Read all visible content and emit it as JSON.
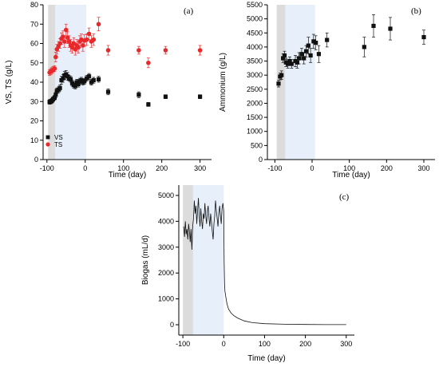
{
  "chart_data": [
    {
      "type": "scatter",
      "panel_label": "(a)",
      "xlabel": "Time (day)",
      "ylabel": "VS, TS (g/L)",
      "xlim": [
        -110,
        330
      ],
      "ylim": [
        0,
        80
      ],
      "xticks": [
        -100,
        0,
        100,
        200,
        300
      ],
      "yticks": [
        0,
        10,
        20,
        30,
        40,
        50,
        60,
        70,
        80
      ],
      "grid": false,
      "legend": "lower-left",
      "shaded_regions": [
        {
          "x0": -97,
          "x1": -78,
          "color": "#dcdcdc"
        },
        {
          "x0": -78,
          "x1": 3,
          "color": "#e7f0fa"
        }
      ],
      "series": [
        {
          "name": "VS",
          "marker": "square",
          "color": "#111111",
          "x": [
            -93,
            -90,
            -87,
            -84,
            -80,
            -77,
            -74,
            -70,
            -66,
            -62,
            -58,
            -54,
            -50,
            -46,
            -42,
            -38,
            -34,
            -30,
            -26,
            -22,
            -18,
            -14,
            -10,
            -6,
            -2,
            4,
            10,
            16,
            22,
            35,
            60,
            140,
            165,
            210,
            300
          ],
          "y": [
            29.8,
            30.0,
            30.4,
            31.2,
            32.0,
            33.5,
            35.5,
            36.0,
            37.0,
            41.0,
            42.0,
            43.5,
            44.0,
            43.0,
            42.0,
            41.5,
            39.5,
            38.5,
            38.0,
            40.0,
            39.0,
            40.5,
            41.0,
            40.0,
            40.5,
            42.0,
            43.0,
            40.0,
            41.0,
            41.5,
            35.0,
            33.5,
            28.5,
            32.5,
            32.5
          ],
          "err": [
            1.2,
            1.2,
            1.2,
            1.2,
            1.2,
            1.5,
            1.5,
            1.5,
            1.5,
            2.0,
            2.0,
            2.0,
            2.0,
            2.0,
            1.5,
            1.5,
            1.5,
            1.5,
            1.5,
            1.5,
            1.5,
            1.5,
            1.5,
            1.5,
            1.5,
            1.5,
            1.5,
            1.5,
            1.5,
            1.5,
            1.5,
            1.5,
            1.0,
            1.0,
            1.0
          ]
        },
        {
          "name": "TS",
          "marker": "circle",
          "color": "#e8292b",
          "x": [
            -93,
            -90,
            -87,
            -84,
            -80,
            -77,
            -74,
            -70,
            -66,
            -62,
            -58,
            -54,
            -50,
            -46,
            -42,
            -38,
            -34,
            -30,
            -26,
            -22,
            -18,
            -14,
            -10,
            -6,
            -2,
            4,
            10,
            16,
            22,
            35,
            60,
            140,
            165,
            210,
            300
          ],
          "y": [
            45.0,
            45.5,
            46.0,
            46.5,
            47.0,
            53.0,
            57.0,
            58.5,
            60.0,
            62.5,
            63.5,
            61.0,
            67.0,
            63.0,
            61.0,
            59.0,
            58.0,
            60.0,
            57.0,
            59.0,
            58.0,
            61.0,
            62.0,
            59.0,
            61.5,
            62.0,
            65.0,
            61.0,
            62.0,
            70.0,
            56.5,
            56.5,
            50.0,
            56.5,
            56.5
          ],
          "err": [
            1.5,
            1.5,
            1.5,
            1.5,
            1.5,
            2.5,
            2.5,
            2.5,
            2.5,
            3.0,
            3.0,
            3.0,
            3.0,
            3.0,
            3.0,
            3.0,
            3.0,
            3.0,
            3.0,
            3.0,
            3.0,
            3.0,
            3.0,
            3.0,
            3.0,
            3.0,
            3.0,
            3.0,
            3.0,
            3.5,
            2.5,
            2.0,
            2.5,
            2.0,
            2.5
          ]
        }
      ]
    },
    {
      "type": "scatter",
      "panel_label": "(b)",
      "xlabel": "Time (day)",
      "ylabel": "Ammonium (g/L)",
      "xlim": [
        -120,
        330
      ],
      "ylim": [
        0,
        5500
      ],
      "xticks": [
        -100,
        0,
        100,
        200,
        300
      ],
      "yticks": [
        0,
        500,
        1000,
        1500,
        2000,
        2500,
        3000,
        3500,
        4000,
        4500,
        5000,
        5500
      ],
      "grid": false,
      "shaded_regions": [
        {
          "x0": -95,
          "x1": -72,
          "color": "#dcdcdc"
        },
        {
          "x0": -72,
          "x1": 8,
          "color": "#e7f0fa"
        }
      ],
      "series": [
        {
          "name": "Ammonium",
          "marker": "square",
          "color": "#111111",
          "x": [
            -90,
            -86,
            -82,
            -78,
            -74,
            -70,
            -65,
            -60,
            -55,
            -45,
            -40,
            -35,
            -28,
            -22,
            -16,
            -10,
            -4,
            4,
            10,
            18,
            40,
            140,
            165,
            210,
            300
          ],
          "y": [
            2700,
            2950,
            3000,
            3600,
            3700,
            3450,
            3400,
            3500,
            3400,
            3500,
            3450,
            3600,
            3750,
            3600,
            3850,
            4050,
            3700,
            4200,
            4150,
            3750,
            4250,
            4000,
            4750,
            4650,
            4350
          ],
          "err": [
            120,
            120,
            150,
            150,
            150,
            150,
            150,
            150,
            150,
            200,
            200,
            200,
            200,
            200,
            200,
            300,
            250,
            250,
            250,
            300,
            250,
            350,
            400,
            400,
            250
          ]
        }
      ]
    },
    {
      "type": "line",
      "panel_label": "(c)",
      "xlabel": "Time (day)",
      "ylabel": "Biogas (mL/d)",
      "xlim": [
        -110,
        320
      ],
      "ylim": [
        -400,
        5400
      ],
      "xticks": [
        -100,
        0,
        100,
        200,
        300
      ],
      "yticks": [
        0,
        1000,
        2000,
        3000,
        4000,
        5000
      ],
      "grid": false,
      "shaded_regions": [
        {
          "x0": -100,
          "x1": -75,
          "color": "#dcdcdc"
        },
        {
          "x0": -75,
          "x1": 0,
          "color": "#e7f0fa"
        }
      ],
      "series": [
        {
          "name": "Biogas",
          "color": "#111111",
          "x": [
            -98,
            -96,
            -94,
            -92,
            -90,
            -88,
            -86,
            -84,
            -82,
            -80,
            -78,
            -76,
            -74,
            -72,
            -70,
            -68,
            -66,
            -64,
            -62,
            -60,
            -58,
            -56,
            -54,
            -52,
            -50,
            -48,
            -46,
            -44,
            -42,
            -40,
            -38,
            -36,
            -34,
            -32,
            -30,
            -28,
            -26,
            -24,
            -22,
            -20,
            -18,
            -16,
            -14,
            -12,
            -10,
            -8,
            -6,
            -4,
            -2,
            0,
            1,
            2,
            3,
            5,
            8,
            12,
            18,
            25,
            35,
            50,
            70,
            100,
            150,
            200,
            250,
            300
          ],
          "y": [
            3800,
            3400,
            4000,
            3500,
            3700,
            3300,
            3900,
            3600,
            3200,
            3700,
            2900,
            3800,
            4100,
            4800,
            4300,
            4600,
            3900,
            4400,
            4900,
            4200,
            3800,
            4500,
            4000,
            3700,
            4300,
            4100,
            4700,
            4200,
            3900,
            4400,
            4600,
            4100,
            3800,
            4300,
            4000,
            3600,
            3300,
            3900,
            4200,
            4800,
            4400,
            4100,
            3800,
            4300,
            4600,
            4200,
            3900,
            4500,
            4700,
            4400,
            2500,
            1600,
            1300,
            1100,
            800,
            600,
            450,
            350,
            250,
            150,
            80,
            40,
            20,
            10,
            5,
            5
          ]
        }
      ]
    }
  ]
}
